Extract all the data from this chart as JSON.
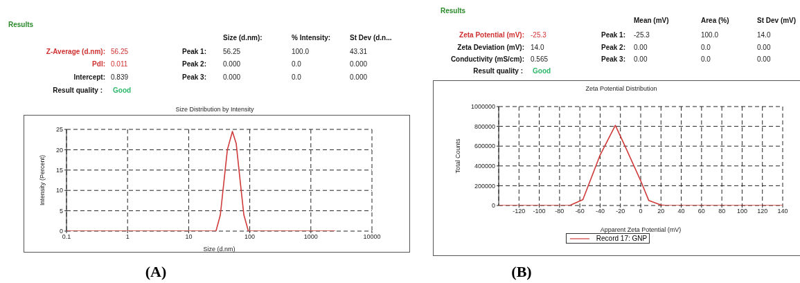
{
  "chart_data": [
    {
      "type": "line",
      "title": "Size Distribution by Intensity",
      "xlabel": "Size (d.nm)",
      "ylabel": "Intensity (Percent)",
      "log": "x",
      "grid": true,
      "marker": "none",
      "line_style": "solid",
      "color": "#d03a3a",
      "x": [
        0.1,
        1,
        10,
        28,
        33,
        43,
        52,
        60,
        70,
        80,
        95,
        1000,
        2500
      ],
      "values": [
        0,
        0,
        0,
        0,
        4,
        20,
        24.5,
        21.5,
        12,
        4,
        0,
        0,
        0
      ],
      "xlim": [
        0.1,
        10000
      ],
      "xticks": [
        0.1,
        1,
        10,
        100,
        1000,
        10000
      ],
      "ylim": [
        0,
        25
      ],
      "yticks": [
        0,
        5,
        10,
        15,
        20,
        25
      ],
      "annotations": [
        "Results",
        "Size (d.nm):",
        "% Intensity:",
        "St Dev (d.n...",
        "Z-Average (d.nm):",
        "56.25",
        "Peak 1:",
        "56.25",
        "100.0",
        "43.31",
        "PdI:",
        "0.011",
        "Peak 2:",
        "0.000",
        "0.0",
        "0.000",
        "Intercept:",
        "0.839",
        "Peak 3:",
        "0.000",
        "0.0",
        "0.000",
        "Result quality :",
        "Good",
        "(A)"
      ]
    },
    {
      "type": "line",
      "title": "Zeta Potential Distribution",
      "xlabel": "Apparent Zeta Potential (mV)",
      "ylabel": "Total Counts",
      "grid": true,
      "marker": "none",
      "line_style": "solid",
      "legend": "bottom",
      "x": [
        -140,
        -70,
        -57,
        -40,
        -25,
        -15,
        0,
        8,
        20,
        25,
        140
      ],
      "series": [
        {
          "name": "Record 17: GNP",
          "color": "#d03a3a",
          "values": [
            0,
            0,
            60000,
            510000,
            810000,
            590000,
            250000,
            50000,
            5000,
            0,
            0
          ]
        }
      ],
      "xlim": [
        -140,
        140
      ],
      "xticks": [
        -120,
        -100,
        -80,
        -60,
        -40,
        -20,
        0,
        20,
        40,
        60,
        80,
        100,
        120,
        140
      ],
      "ylim": [
        0,
        1000000
      ],
      "yticks": [
        0,
        200000,
        400000,
        600000,
        800000,
        1000000
      ],
      "annotations": [
        "Results",
        "Mean (mV)",
        "Area (%)",
        "St Dev (mV)",
        "Zeta Potential (mV):",
        "-25.3",
        "Peak 1:",
        "-25.3",
        "100.0",
        "14.0",
        "Zeta Deviation (mV):",
        "14.0",
        "Peak 2:",
        "0.00",
        "0.0",
        "0.00",
        "Conductivity (mS/cm):",
        "0.565",
        "Peak 3:",
        "0.00",
        "0.0",
        "0.00",
        "Result quality :",
        "Good",
        "(B)"
      ]
    }
  ]
}
